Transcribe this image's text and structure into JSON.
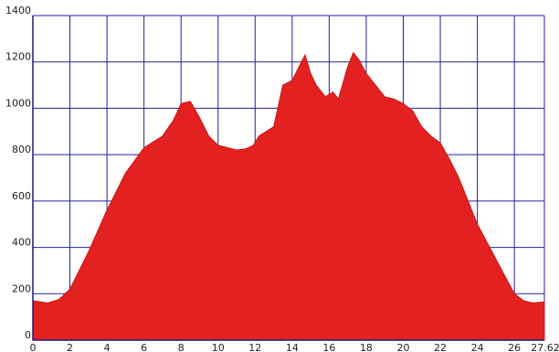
{
  "chart_data": {
    "type": "area",
    "title": "",
    "xlabel": "",
    "ylabel": "",
    "xlim": [
      0,
      27.62
    ],
    "ylim": [
      0,
      1400
    ],
    "grid": true,
    "x_ticks": [
      0,
      2,
      4,
      6,
      8,
      10,
      12,
      14,
      16,
      18,
      20,
      22,
      24,
      26
    ],
    "x_tick_labels": [
      "0",
      "2",
      "4",
      "6",
      "8",
      "10",
      "12",
      "14",
      "16",
      "18",
      "20",
      "22",
      "24",
      "26"
    ],
    "x_end_label": "27.62",
    "y_ticks": [
      0,
      200,
      400,
      600,
      800,
      1000,
      1200,
      1400
    ],
    "y_tick_labels": [
      "0",
      "200",
      "400",
      "600",
      "800",
      "1000",
      "1200",
      "1400"
    ],
    "series": [
      {
        "color": "#e32121",
        "x": [
          0,
          0.8,
          1.4,
          2,
          3,
          4,
          5,
          6,
          7,
          7.6,
          8,
          8.5,
          9,
          9.5,
          10,
          10.5,
          11,
          11.5,
          11.9,
          12.2,
          13,
          13.5,
          14,
          14.5,
          14.7,
          15,
          15.3,
          15.8,
          16.2,
          16.5,
          17,
          17.3,
          17.6,
          18,
          18.5,
          19,
          19.5,
          20,
          20.5,
          21,
          21.5,
          22,
          22.5,
          23,
          24,
          25,
          26,
          26.5,
          27,
          27.62
        ],
        "y": [
          170,
          160,
          175,
          220,
          380,
          560,
          720,
          830,
          880,
          950,
          1020,
          1030,
          960,
          880,
          840,
          830,
          820,
          825,
          840,
          880,
          920,
          1100,
          1120,
          1200,
          1230,
          1150,
          1100,
          1050,
          1070,
          1040,
          1180,
          1240,
          1210,
          1150,
          1100,
          1050,
          1040,
          1020,
          990,
          920,
          880,
          850,
          780,
          700,
          500,
          350,
          200,
          170,
          160,
          165
        ]
      }
    ]
  }
}
